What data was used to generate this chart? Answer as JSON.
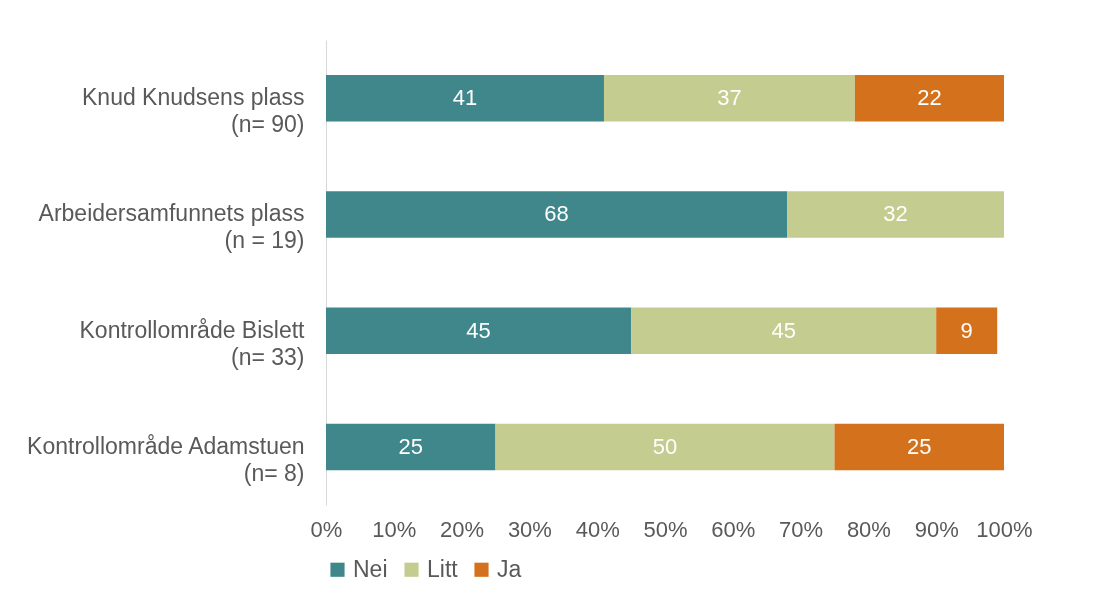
{
  "chart_data": {
    "type": "bar",
    "orientation": "horizontal",
    "stacked": true,
    "data_labels": true,
    "grid": false,
    "legend": "bottom",
    "categories": [
      "Knud Knudsens plass\n(n= 90)",
      "Arbeidersamfunnets plass\n(n = 19)",
      "Kontrollområde Bislett\n(n= 33)",
      "Kontrollområde Adamstuen\n(n= 8)"
    ],
    "series": [
      {
        "name": "Nei",
        "color": "#3f878a",
        "values": [
          41,
          68,
          45,
          25
        ]
      },
      {
        "name": "Litt",
        "color": "#c5cc90",
        "values": [
          37,
          32,
          45,
          50
        ]
      },
      {
        "name": "Ja",
        "color": "#d4711d",
        "values": [
          22,
          null,
          9,
          25
        ]
      }
    ],
    "xlim": [
      0,
      100
    ],
    "xticks": [
      {
        "value": 0,
        "label": "0%"
      },
      {
        "value": 10,
        "label": "10%"
      },
      {
        "value": 20,
        "label": "20%"
      },
      {
        "value": 30,
        "label": "30%"
      },
      {
        "value": 40,
        "label": "40%"
      },
      {
        "value": 50,
        "label": "50%"
      },
      {
        "value": 60,
        "label": "60%"
      },
      {
        "value": 70,
        "label": "70%"
      },
      {
        "value": 80,
        "label": "80%"
      },
      {
        "value": 90,
        "label": "90%"
      },
      {
        "value": 100,
        "label": "100%"
      }
    ]
  }
}
